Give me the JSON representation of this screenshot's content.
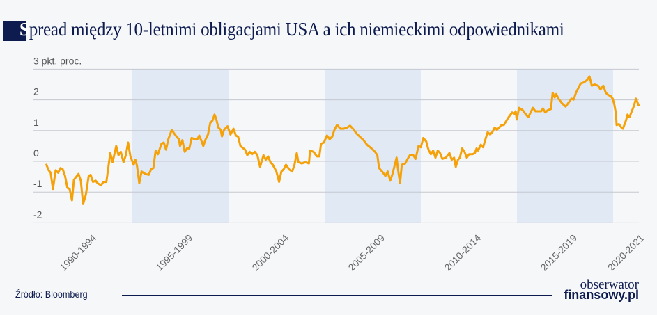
{
  "title": {
    "first_letter": "S",
    "rest": "pread między 10-letnimi obligacjami USA a ich niemieckimi odpowiednikami"
  },
  "source": "Źródło: Bloomberg",
  "logo": {
    "line1": "obserwator",
    "line2": "finansowy.pl"
  },
  "chart_data": {
    "type": "line",
    "title": "Spread między 10-letnimi obligacjami USA a ich niemieckimi odpowiednikami",
    "ylabel": "pkt. proc.",
    "ylim": [
      -2,
      3
    ],
    "yticks": [
      {
        "value": 3,
        "label": "3 pkt. proc."
      },
      {
        "value": 2,
        "label": "2"
      },
      {
        "value": 1,
        "label": "1"
      },
      {
        "value": 0,
        "label": "0"
      },
      {
        "value": -1,
        "label": "-1"
      },
      {
        "value": -2,
        "label": "-2"
      }
    ],
    "xlim": [
      1989.9,
      2021.4
    ],
    "xticks": [
      {
        "label": "1990-1994",
        "start": 1990,
        "end": 1995
      },
      {
        "label": "1995-1999",
        "start": 1995,
        "end": 2000
      },
      {
        "label": "2000-2004",
        "start": 2000,
        "end": 2005
      },
      {
        "label": "2005-2009",
        "start": 2005,
        "end": 2010
      },
      {
        "label": "2010-2014",
        "start": 2010,
        "end": 2015
      },
      {
        "label": "2015-2019",
        "start": 2015,
        "end": 2020
      },
      {
        "label": "2020-2021",
        "start": 2020,
        "end": 2021.4
      }
    ],
    "shaded_periods": [
      [
        1995,
        2000
      ],
      [
        2005,
        2010
      ],
      [
        2015,
        2020
      ]
    ],
    "grid": true,
    "colors": {
      "line": "#f5a20a",
      "band": "#e1e9f4",
      "grid": "#c5c8cf",
      "title": "#0d1b4f"
    },
    "series": [
      {
        "points": [
          [
            1990.53,
            -0.11
          ],
          [
            1990.65,
            -0.29
          ],
          [
            1990.75,
            -0.37
          ],
          [
            1990.87,
            -0.9
          ],
          [
            1991.01,
            -0.29
          ],
          [
            1991.14,
            -0.37
          ],
          [
            1991.26,
            -0.22
          ],
          [
            1991.38,
            -0.26
          ],
          [
            1991.5,
            -0.48
          ],
          [
            1991.62,
            -0.86
          ],
          [
            1991.74,
            -0.9
          ],
          [
            1991.86,
            -1.27
          ],
          [
            1991.96,
            -0.6
          ],
          [
            1992.2,
            -0.41
          ],
          [
            1992.32,
            -0.63
          ],
          [
            1992.44,
            -1.39
          ],
          [
            1992.58,
            -1.09
          ],
          [
            1992.73,
            -0.48
          ],
          [
            1992.83,
            -0.44
          ],
          [
            1992.95,
            -0.67
          ],
          [
            1993.09,
            -0.63
          ],
          [
            1993.19,
            -0.71
          ],
          [
            1993.37,
            -0.78
          ],
          [
            1993.49,
            -0.67
          ],
          [
            1993.65,
            -0.67
          ],
          [
            1993.85,
            0.27
          ],
          [
            1993.97,
            -0.03
          ],
          [
            1994.16,
            0.5
          ],
          [
            1994.28,
            0.2
          ],
          [
            1994.4,
            0.31
          ],
          [
            1994.54,
            -0.03
          ],
          [
            1994.66,
            0.2
          ],
          [
            1994.78,
            0.61
          ],
          [
            1994.9,
            0.16
          ],
          [
            1995.06,
            -0.11
          ],
          [
            1995.16,
            0.05
          ],
          [
            1995.24,
            -0.14
          ],
          [
            1995.36,
            -0.71
          ],
          [
            1995.48,
            -0.33
          ],
          [
            1995.67,
            -0.41
          ],
          [
            1995.85,
            -0.44
          ],
          [
            1995.97,
            -0.26
          ],
          [
            1996.09,
            -0.22
          ],
          [
            1996.21,
            0.35
          ],
          [
            1996.33,
            0.23
          ],
          [
            1996.51,
            0.57
          ],
          [
            1996.63,
            0.61
          ],
          [
            1996.75,
            0.38
          ],
          [
            1996.87,
            0.72
          ],
          [
            1997.05,
            1.03
          ],
          [
            1997.17,
            0.91
          ],
          [
            1997.3,
            0.8
          ],
          [
            1997.42,
            0.72
          ],
          [
            1997.48,
            0.5
          ],
          [
            1997.6,
            0.69
          ],
          [
            1997.72,
            0.31
          ],
          [
            1997.84,
            0.42
          ],
          [
            1997.96,
            0.42
          ],
          [
            1998.08,
            0.76
          ],
          [
            1998.24,
            0.72
          ],
          [
            1998.38,
            0.72
          ],
          [
            1998.48,
            0.84
          ],
          [
            1998.6,
            0.65
          ],
          [
            1998.69,
            0.5
          ],
          [
            1998.81,
            0.72
          ],
          [
            1998.93,
            0.87
          ],
          [
            1999.05,
            1.25
          ],
          [
            1999.17,
            1.33
          ],
          [
            1999.27,
            1.52
          ],
          [
            1999.35,
            1.4
          ],
          [
            1999.47,
            1.1
          ],
          [
            1999.59,
            1.03
          ],
          [
            1999.66,
            0.81
          ],
          [
            1999.77,
            1.03
          ],
          [
            1999.95,
            1.14
          ],
          [
            2000.1,
            0.87
          ],
          [
            2000.26,
            1.06
          ],
          [
            2000.38,
            0.84
          ],
          [
            2000.5,
            0.8
          ],
          [
            2000.62,
            0.5
          ],
          [
            2000.86,
            0.38
          ],
          [
            2000.98,
            0.2
          ],
          [
            2001.1,
            0.31
          ],
          [
            2001.22,
            0.23
          ],
          [
            2001.37,
            0.31
          ],
          [
            2001.5,
            0.2
          ],
          [
            2001.64,
            -0.18
          ],
          [
            2001.82,
            0.2
          ],
          [
            2001.94,
            0.05
          ],
          [
            2002.06,
            0.16
          ],
          [
            2002.18,
            -0.03
          ],
          [
            2002.3,
            -0.11
          ],
          [
            2002.49,
            -0.33
          ],
          [
            2002.63,
            -0.67
          ],
          [
            2002.75,
            -0.33
          ],
          [
            2002.87,
            -0.26
          ],
          [
            2002.99,
            -0.11
          ],
          [
            2003.15,
            -0.26
          ],
          [
            2003.31,
            -0.33
          ],
          [
            2003.43,
            -0.11
          ],
          [
            2003.55,
            0.27
          ],
          [
            2003.63,
            -0.03
          ],
          [
            2003.81,
            -0.07
          ],
          [
            2004.0,
            -0.03
          ],
          [
            2004.18,
            -0.07
          ],
          [
            2004.24,
            0.35
          ],
          [
            2004.42,
            0.31
          ],
          [
            2004.6,
            0.16
          ],
          [
            2004.72,
            0.16
          ],
          [
            2004.81,
            0.57
          ],
          [
            2004.96,
            0.61
          ],
          [
            2005.12,
            0.84
          ],
          [
            2005.26,
            0.72
          ],
          [
            2005.39,
            0.8
          ],
          [
            2005.51,
            1.03
          ],
          [
            2005.65,
            1.19
          ],
          [
            2005.81,
            1.06
          ],
          [
            2005.99,
            1.06
          ],
          [
            2006.17,
            1.1
          ],
          [
            2006.32,
            1.16
          ],
          [
            2006.47,
            1.06
          ],
          [
            2006.65,
            0.91
          ],
          [
            2006.83,
            0.8
          ],
          [
            2007.02,
            0.69
          ],
          [
            2007.2,
            0.54
          ],
          [
            2007.44,
            0.42
          ],
          [
            2007.62,
            0.31
          ],
          [
            2007.74,
            0.2
          ],
          [
            2007.83,
            -0.22
          ],
          [
            2008.04,
            -0.37
          ],
          [
            2008.16,
            -0.48
          ],
          [
            2008.28,
            -0.33
          ],
          [
            2008.41,
            -0.63
          ],
          [
            2008.53,
            -0.41
          ],
          [
            2008.65,
            -0.11
          ],
          [
            2008.74,
            0.12
          ],
          [
            2008.83,
            -0.33
          ],
          [
            2008.92,
            -0.71
          ],
          [
            2009.01,
            -0.11
          ],
          [
            2009.19,
            -0.07
          ],
          [
            2009.35,
            0.12
          ],
          [
            2009.43,
            0.2
          ],
          [
            2009.61,
            0.2
          ],
          [
            2009.73,
            0.08
          ],
          [
            2009.88,
            0.5
          ],
          [
            2010.0,
            0.46
          ],
          [
            2010.13,
            0.76
          ],
          [
            2010.28,
            0.65
          ],
          [
            2010.4,
            0.38
          ],
          [
            2010.52,
            0.23
          ],
          [
            2010.64,
            0.35
          ],
          [
            2010.76,
            0.12
          ],
          [
            2010.88,
            0.35
          ],
          [
            2011.0,
            0.27
          ],
          [
            2011.12,
            0.08
          ],
          [
            2011.3,
            0.12
          ],
          [
            2011.49,
            0.27
          ],
          [
            2011.61,
            0.05
          ],
          [
            2011.73,
            0.12
          ],
          [
            2011.82,
            -0.18
          ],
          [
            2011.93,
            0.05
          ],
          [
            2012.03,
            0.12
          ],
          [
            2012.15,
            0.42
          ],
          [
            2012.27,
            0.31
          ],
          [
            2012.39,
            0.12
          ],
          [
            2012.51,
            0.23
          ],
          [
            2012.69,
            0.23
          ],
          [
            2012.81,
            0.27
          ],
          [
            2012.9,
            0.42
          ],
          [
            2012.98,
            0.35
          ],
          [
            2013.12,
            0.54
          ],
          [
            2013.24,
            0.46
          ],
          [
            2013.38,
            0.76
          ],
          [
            2013.48,
            0.95
          ],
          [
            2013.6,
            0.87
          ],
          [
            2013.72,
            0.95
          ],
          [
            2013.84,
            1.1
          ],
          [
            2013.96,
            1.03
          ],
          [
            2014.08,
            1.1
          ],
          [
            2014.2,
            1.18
          ],
          [
            2014.32,
            1.18
          ],
          [
            2014.42,
            1.29
          ],
          [
            2014.57,
            1.44
          ],
          [
            2014.75,
            1.59
          ],
          [
            2014.87,
            1.55
          ],
          [
            2014.93,
            1.63
          ],
          [
            2014.99,
            1.36
          ],
          [
            2015.11,
            1.74
          ],
          [
            2015.29,
            1.67
          ],
          [
            2015.47,
            1.52
          ],
          [
            2015.59,
            1.44
          ],
          [
            2015.71,
            1.59
          ],
          [
            2015.83,
            1.74
          ],
          [
            2015.96,
            1.63
          ],
          [
            2016.14,
            1.63
          ],
          [
            2016.26,
            1.63
          ],
          [
            2016.35,
            1.72
          ],
          [
            2016.47,
            1.59
          ],
          [
            2016.62,
            1.67
          ],
          [
            2016.76,
            1.7
          ],
          [
            2016.86,
            2.23
          ],
          [
            2016.96,
            2.08
          ],
          [
            2017.04,
            2.19
          ],
          [
            2017.16,
            2.04
          ],
          [
            2017.34,
            1.89
          ],
          [
            2017.53,
            1.78
          ],
          [
            2017.71,
            1.93
          ],
          [
            2017.83,
            2.04
          ],
          [
            2017.95,
            2.01
          ],
          [
            2018.07,
            2.23
          ],
          [
            2018.19,
            2.38
          ],
          [
            2018.31,
            2.53
          ],
          [
            2018.49,
            2.57
          ],
          [
            2018.65,
            2.65
          ],
          [
            2018.77,
            2.76
          ],
          [
            2018.89,
            2.46
          ],
          [
            2019.04,
            2.5
          ],
          [
            2019.22,
            2.46
          ],
          [
            2019.34,
            2.34
          ],
          [
            2019.49,
            2.46
          ],
          [
            2019.62,
            2.23
          ],
          [
            2019.74,
            2.16
          ],
          [
            2019.88,
            2.12
          ],
          [
            2019.98,
            2.04
          ],
          [
            2020.06,
            1.85
          ],
          [
            2020.15,
            1.55
          ],
          [
            2020.18,
            1.18
          ],
          [
            2020.3,
            1.21
          ],
          [
            2020.43,
            1.1
          ],
          [
            2020.51,
            1.06
          ],
          [
            2020.67,
            1.33
          ],
          [
            2020.75,
            1.52
          ],
          [
            2020.85,
            1.44
          ],
          [
            2020.97,
            1.63
          ],
          [
            2021.07,
            1.78
          ],
          [
            2021.19,
            2.04
          ],
          [
            2021.33,
            1.82
          ]
        ]
      }
    ]
  }
}
